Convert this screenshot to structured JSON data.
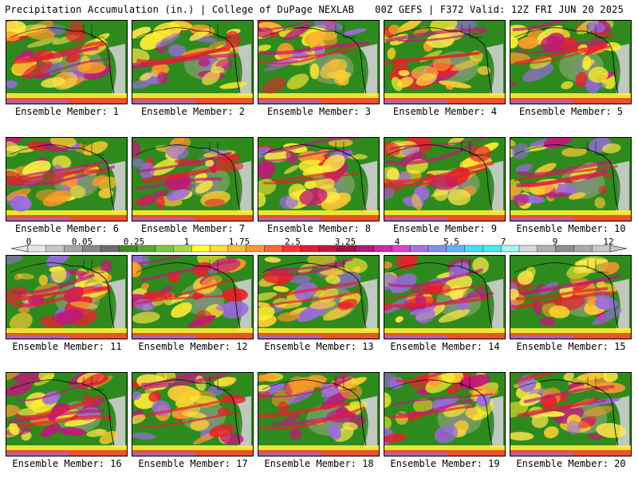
{
  "header": {
    "title_left": "Precipitation Accumulation (in.) | College of DuPage NEXLAB",
    "title_right": "00Z GEFS | F372 Valid: 12Z FRI JUN 20 2025"
  },
  "members": [
    {
      "label": "Ensemble Member: 1"
    },
    {
      "label": "Ensemble Member: 2"
    },
    {
      "label": "Ensemble Member: 3"
    },
    {
      "label": "Ensemble Member: 4"
    },
    {
      "label": "Ensemble Member: 5"
    },
    {
      "label": "Ensemble Member: 6"
    },
    {
      "label": "Ensemble Member: 7"
    },
    {
      "label": "Ensemble Member: 8"
    },
    {
      "label": "Ensemble Member: 9"
    },
    {
      "label": "Ensemble Member: 10"
    },
    {
      "label": "Ensemble Member: 11"
    },
    {
      "label": "Ensemble Member: 12"
    },
    {
      "label": "Ensemble Member: 13"
    },
    {
      "label": "Ensemble Member: 14"
    },
    {
      "label": "Ensemble Member: 15"
    },
    {
      "label": "Ensemble Member: 16"
    },
    {
      "label": "Ensemble Member: 17"
    },
    {
      "label": "Ensemble Member: 18"
    },
    {
      "label": "Ensemble Member: 19"
    },
    {
      "label": "Ensemble Member: 20"
    }
  ],
  "colorbar": {
    "labels": [
      "0",
      "0.05",
      "0.25",
      "1",
      "1.75",
      "2.5",
      "3.25",
      "4",
      "5.5",
      "7",
      "9",
      "12"
    ],
    "colors": [
      "#e6e6e6",
      "#c8c8c8",
      "#a8a8a8",
      "#888888",
      "#6e6e6e",
      "#3c8c28",
      "#56a832",
      "#7cc83c",
      "#a8d848",
      "#ffff33",
      "#ffdd33",
      "#ffbb33",
      "#ff9933",
      "#ff6633",
      "#ff3333",
      "#e61a33",
      "#c81438",
      "#a01040",
      "#b01a78",
      "#d028a8",
      "#e040d0",
      "#b070e8",
      "#8090f0",
      "#60b8f8",
      "#40e0ff",
      "#40f0e8",
      "#a0f8f0",
      "#d8d8d8",
      "#b0b0b0",
      "#909090",
      "#a8a8a8",
      "#c8c8c8"
    ]
  },
  "colors": {
    "background": "#ffffff",
    "base_green": "#2f8a1e",
    "dry_gray": "#8a8a8a",
    "yellow": "#ffee33",
    "orange": "#ff9a2a",
    "red": "#e8202a",
    "magenta": "#c01878",
    "purple": "#9a6ae0",
    "coastline": "#000000"
  }
}
